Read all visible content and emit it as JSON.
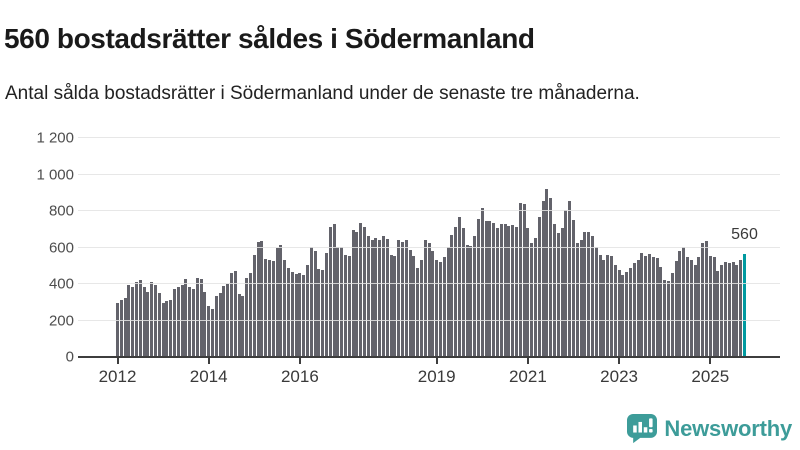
{
  "header": {
    "title": "560 bostadsrätter såldes i Södermanland",
    "subtitle": "Antal sålda bostadsrätter i Södermanland under de senaste tre månaderna."
  },
  "chart_data": {
    "type": "bar",
    "title": "560 bostadsrätter såldes i Södermanland",
    "xlabel": "",
    "ylabel": "",
    "frequency": "monthly",
    "x_start": "2012-01",
    "x_end": "2025-10",
    "ylim": [
      0,
      1200
    ],
    "grid": true,
    "bar_color": "#63636b",
    "values": [
      290,
      307,
      320,
      390,
      380,
      405,
      415,
      380,
      350,
      405,
      390,
      345,
      290,
      300,
      305,
      365,
      380,
      390,
      420,
      380,
      365,
      430,
      420,
      350,
      273,
      255,
      331,
      345,
      382,
      396,
      455,
      464,
      342,
      327,
      427,
      455,
      555,
      627,
      631,
      531,
      527,
      518,
      591,
      609,
      527,
      480,
      460,
      450,
      455,
      445,
      500,
      596,
      573,
      476,
      473,
      567,
      709,
      722,
      596,
      600,
      555,
      549,
      691,
      682,
      731,
      709,
      658,
      636,
      645,
      636,
      655,
      640,
      555,
      549,
      636,
      627,
      636,
      582,
      549,
      482,
      527,
      636,
      618,
      576,
      527,
      513,
      545,
      600,
      664,
      709,
      764,
      704,
      609,
      604,
      655,
      749,
      809,
      740,
      742,
      727,
      700,
      722,
      722,
      713,
      718,
      709,
      836,
      833,
      700,
      622,
      649,
      760,
      849,
      915,
      864,
      722,
      673,
      700,
      800,
      849,
      745,
      618,
      636,
      680,
      682,
      658,
      595,
      555,
      527,
      555,
      549,
      500,
      473,
      445,
      458,
      482,
      509,
      527,
      564,
      549,
      558,
      545,
      536,
      487,
      418,
      409,
      455,
      518,
      575,
      596,
      545,
      527,
      500,
      545,
      618,
      631,
      549,
      545,
      464,
      500,
      513,
      509,
      513,
      500,
      527,
      560
    ],
    "highlight": {
      "index": 165,
      "value": 560,
      "label": "560",
      "color": "#009aa0"
    },
    "yticks": [
      {
        "value": 0,
        "label": "0"
      },
      {
        "value": 200,
        "label": "200"
      },
      {
        "value": 400,
        "label": "400"
      },
      {
        "value": 600,
        "label": "600"
      },
      {
        "value": 800,
        "label": "800"
      },
      {
        "value": 1000,
        "label": "1 000"
      },
      {
        "value": 1200,
        "label": "1 200"
      }
    ],
    "xticks": [
      {
        "label": "2012",
        "month_index": 0
      },
      {
        "label": "2014",
        "month_index": 24
      },
      {
        "label": "2016",
        "month_index": 48
      },
      {
        "label": "2019",
        "month_index": 84
      },
      {
        "label": "2021",
        "month_index": 108
      },
      {
        "label": "2023",
        "month_index": 132
      },
      {
        "label": "2025",
        "month_index": 156
      }
    ]
  },
  "footer": {
    "brand": "Newsworthy",
    "brand_color": "#3d9c99"
  }
}
